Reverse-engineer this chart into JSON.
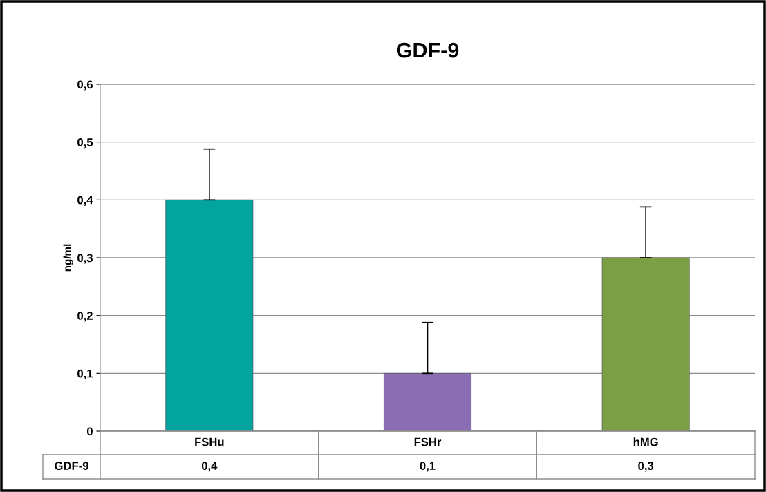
{
  "chart_data": {
    "type": "bar",
    "title": "GDF-9",
    "ylabel": "ng/ml",
    "categories": [
      "FSHu",
      "FSHr",
      "hMG"
    ],
    "series": [
      {
        "name": "GDF-9",
        "colors": [
          "#03a3a0",
          "#8b6db3",
          "#7aa043"
        ],
        "values": [
          0.4,
          0.1,
          0.3
        ],
        "errors": [
          [
            0.4,
            0.488
          ],
          [
            0.1,
            0.188
          ],
          [
            0.3,
            0.388
          ]
        ],
        "value_labels": [
          "0,4",
          "0,1",
          "0,3"
        ]
      }
    ],
    "ylim": [
      0,
      0.6
    ],
    "yticks": [
      {
        "value": 0,
        "label": "0"
      },
      {
        "value": 0.1,
        "label": "0,1"
      },
      {
        "value": 0.2,
        "label": "0,2"
      },
      {
        "value": 0.3,
        "label": "0,3"
      },
      {
        "value": 0.4,
        "label": "0,4"
      },
      {
        "value": 0.5,
        "label": "0,5"
      },
      {
        "value": 0.6,
        "label": "0,6"
      }
    ],
    "grid": "y",
    "legend": false
  }
}
